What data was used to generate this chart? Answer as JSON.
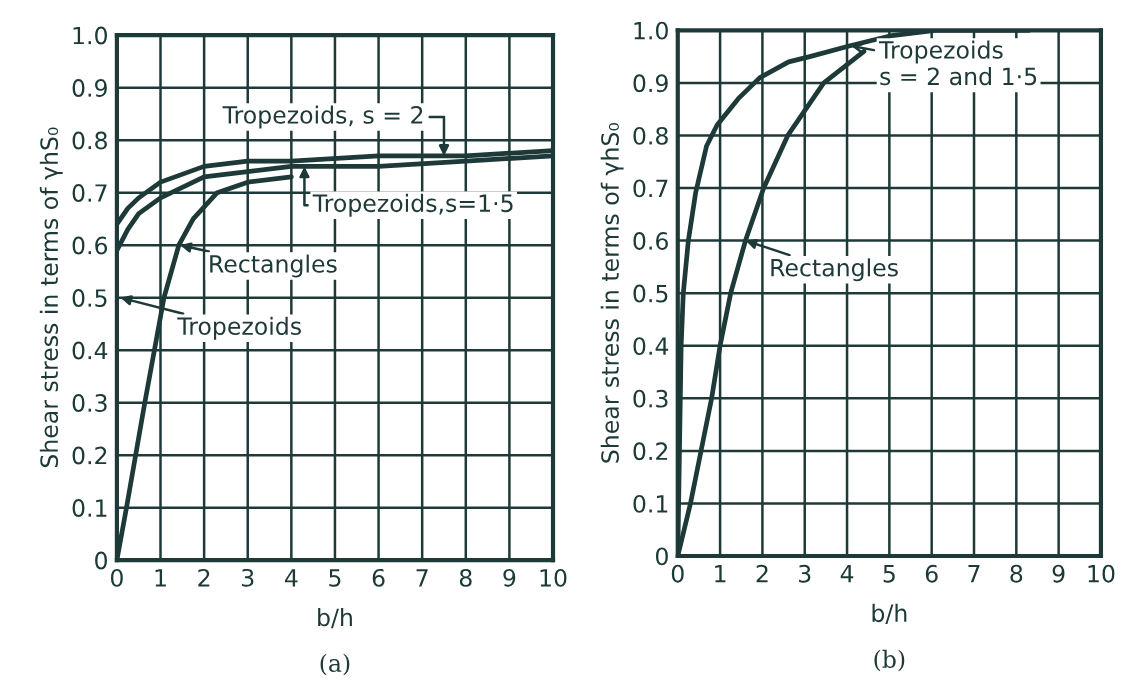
{
  "chart_data": [
    {
      "type": "line",
      "title": "(a)",
      "xlabel": "b/h",
      "ylabel": "Shear stress in terms of γhS₀",
      "xlim": [
        0,
        10
      ],
      "ylim": [
        0,
        1.0
      ],
      "xticks": [
        0,
        1,
        2,
        3,
        4,
        5,
        6,
        7,
        8,
        9,
        10
      ],
      "yticks": [
        0,
        0.1,
        0.2,
        0.3,
        0.4,
        0.5,
        0.6,
        0.7,
        0.8,
        0.9,
        {
          "value": 1,
          "label": "1.0"
        }
      ],
      "grid": true,
      "series": [
        {
          "color": "#1e3a38",
          "x": [
            0,
            0.25,
            0.5,
            1,
            2,
            3,
            4,
            6,
            8,
            10
          ],
          "values": [
            0.64,
            0.67,
            0.69,
            0.72,
            0.75,
            0.76,
            0.76,
            0.77,
            0.77,
            0.78
          ]
        },
        {
          "color": "#1e3a38",
          "x": [
            0,
            0.25,
            0.5,
            1,
            2,
            3,
            4,
            6,
            8,
            10
          ],
          "values": [
            0.59,
            0.63,
            0.66,
            0.69,
            0.73,
            0.74,
            0.75,
            0.75,
            0.76,
            0.77
          ]
        },
        {
          "color": "#1e3a38",
          "x": [
            0,
            0.22,
            0.43,
            0.64,
            0.86,
            1.08,
            1.42,
            1.75,
            2.3,
            3,
            4
          ],
          "values": [
            0,
            0.1,
            0.2,
            0.3,
            0.4,
            0.5,
            0.6,
            0.65,
            0.7,
            0.72,
            0.73
          ]
        }
      ],
      "annotations": [
        {
          "text": "Tropezoids, s = 2",
          "x": 7.5,
          "y": 0.77
        },
        {
          "text": "Tropezoids,s=1·5",
          "x": 4.3,
          "y": 0.75
        },
        {
          "text": "Rectangles",
          "x": 1.45,
          "y": 0.6
        },
        "Tropezoids"
      ]
    },
    {
      "type": "line",
      "title": "(b)",
      "xlabel": "b/h",
      "ylabel": "Shear stress in terms of γhS₀",
      "xlim": [
        0,
        10
      ],
      "ylim": [
        0,
        1.0
      ],
      "xticks": [
        0,
        1,
        2,
        3,
        4,
        5,
        6,
        7,
        8,
        9,
        10
      ],
      "yticks": [
        0,
        0.1,
        0.2,
        0.3,
        0.4,
        0.5,
        0.6,
        0.7,
        0.8,
        0.9,
        {
          "value": 1,
          "label": "1.0"
        }
      ],
      "grid": true,
      "series": [
        {
          "color": "#1e3a38",
          "x": [
            0,
            0.04,
            0.08,
            0.13,
            0.25,
            0.42,
            0.68,
            0.93,
            1.43,
            1.94,
            2.62,
            3.12,
            4.05,
            5.06,
            6.08,
            8.3
          ],
          "values": [
            0,
            0.2,
            0.4,
            0.5,
            0.6,
            0.69,
            0.78,
            0.82,
            0.87,
            0.91,
            0.94,
            0.95,
            0.97,
            0.99,
            1.0,
            1.0
          ]
        },
        {
          "color": "#1e3a38",
          "x": [
            0,
            0.3,
            0.55,
            0.8,
            1,
            1.25,
            1.6,
            2.03,
            2.6,
            3.45,
            4.4
          ],
          "values": [
            0,
            0.1,
            0.2,
            0.3,
            0.4,
            0.5,
            0.6,
            0.7,
            0.8,
            0.9,
            0.96
          ]
        }
      ],
      "annotations": [
        {
          "text": "Tropezoids\ns = 2 and 1·5",
          "x": 4.1,
          "y": 0.97
        },
        {
          "text": "Rectangles",
          "x": 1.6,
          "y": 0.6
        }
      ]
    }
  ]
}
